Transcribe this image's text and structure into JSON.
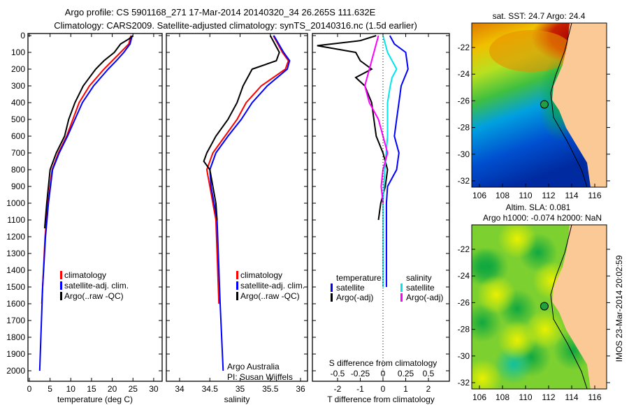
{
  "title_line1": "Argo profile: CS 5901168_271 17-Mar-2014 20140320_34 26.265S 111.632E",
  "title_line2": "Climatology: CARS2009. Satellite-adjusted climatology: synTS_20140316.nc (1.5d earlier)",
  "chart_data": [
    {
      "type": "line",
      "name": "temperature-profile",
      "xlabel": "temperature (deg C)",
      "xlim": [
        -2,
        31
      ],
      "xticks": [
        0,
        5,
        10,
        15,
        20,
        25,
        30
      ],
      "ylim": [
        2050,
        0
      ],
      "yticks": [
        0,
        100,
        200,
        300,
        400,
        500,
        600,
        700,
        800,
        900,
        1000,
        1100,
        1200,
        1300,
        1400,
        1500,
        1600,
        1700,
        1800,
        1900,
        2000
      ],
      "legend": [
        "climatology",
        "satellite-adj. clim.",
        "Argo(..raw -QC)"
      ],
      "legend_position": "bottom-right",
      "series": [
        {
          "name": "climatology",
          "color": "#ff0000",
          "depth": [
            0,
            50,
            100,
            150,
            200,
            300,
            400,
            500,
            600,
            700,
            800,
            1000,
            1200,
            1500,
            1600
          ],
          "values": [
            24.5,
            24,
            22,
            20,
            18,
            14.5,
            12,
            10.5,
            9,
            7,
            5.5,
            4.5,
            3.8,
            3.2,
            3.0
          ]
        },
        {
          "name": "satellite-adj. clim.",
          "color": "#0000ff",
          "depth": [
            0,
            50,
            100,
            150,
            200,
            300,
            400,
            500,
            600,
            700,
            800,
            1000,
            1200,
            1500,
            2000
          ],
          "values": [
            24.8,
            24.3,
            22.8,
            21,
            19,
            15.5,
            12.8,
            11,
            9.2,
            7.2,
            5.6,
            4.6,
            3.9,
            3.2,
            2.5
          ]
        },
        {
          "name": "Argo(..raw -QC)",
          "color": "#000000",
          "depth": [
            0,
            20,
            50,
            100,
            150,
            200,
            300,
            400,
            500,
            600,
            700,
            800,
            1000,
            1150
          ],
          "values": [
            25,
            24,
            22,
            20.5,
            18,
            16,
            13,
            11,
            9.5,
            8.5,
            6.5,
            5,
            4.2,
            3.7
          ]
        }
      ]
    },
    {
      "type": "line",
      "name": "salinity-profile",
      "xlabel": "salinity",
      "xlim": [
        33.78,
        36.15
      ],
      "xticks": [
        34,
        34.5,
        35,
        35.5,
        36
      ],
      "ylim": [
        2050,
        0
      ],
      "legend": [
        "climatology",
        "satellite-adj. clim.",
        "Argo(..raw -QC)"
      ],
      "legend_position": "bottom-right",
      "annotation": [
        "Argo Australia",
        "PI: Susan Wijffels"
      ],
      "series": [
        {
          "name": "climatology",
          "color": "#ff0000",
          "depth": [
            0,
            100,
            150,
            200,
            300,
            400,
            500,
            600,
            700,
            800,
            900,
            1000,
            1100,
            1600
          ],
          "values": [
            35.55,
            35.7,
            35.8,
            35.75,
            35.35,
            35.1,
            34.95,
            34.75,
            34.55,
            34.45,
            34.5,
            34.55,
            34.6,
            34.65
          ]
        },
        {
          "name": "satellite-adj. clim.",
          "color": "#0000ff",
          "depth": [
            0,
            100,
            150,
            200,
            300,
            400,
            500,
            600,
            700,
            800,
            900,
            1000,
            1100,
            1600,
            2000
          ],
          "values": [
            35.56,
            35.72,
            35.82,
            35.78,
            35.45,
            35.2,
            35.02,
            34.8,
            34.6,
            34.5,
            34.52,
            34.57,
            34.62,
            34.67,
            34.72
          ]
        },
        {
          "name": "Argo(..raw -QC)",
          "color": "#000000",
          "depth": [
            0,
            100,
            150,
            200,
            300,
            400,
            500,
            600,
            700,
            750,
            800,
            900,
            1000,
            1100
          ],
          "values": [
            35.5,
            35.65,
            35.6,
            35.2,
            35.05,
            34.95,
            34.8,
            34.6,
            34.45,
            34.4,
            34.5,
            34.55,
            34.6,
            34.62
          ]
        }
      ]
    },
    {
      "type": "line",
      "name": "difference-profile",
      "xlabel": "T difference from climatology",
      "xlabel_top": "S difference from climatology",
      "xlim": [
        -3,
        3
      ],
      "xticks": [
        -2,
        -1,
        0,
        1,
        2
      ],
      "s_xticks": [
        -0.5,
        -0.25,
        0,
        0.25,
        0.5
      ],
      "s_xticklabels": [
        "-0.5",
        "-0.25",
        "0",
        "0.25",
        "0.5"
      ],
      "ylim": [
        2050,
        0
      ],
      "legend_headers": [
        "temperature",
        "salinity"
      ],
      "legend": [
        "satellite",
        "Argo(-adj)",
        "satellite",
        "Argo(-adj)"
      ],
      "series": [
        {
          "name": "T satellite",
          "color": "#0000ff",
          "axis": "T",
          "depth": [
            0,
            50,
            100,
            200,
            300,
            400,
            500,
            600,
            700,
            800,
            900,
            1000,
            1500
          ],
          "values": [
            0.3,
            0.5,
            1.0,
            1.1,
            0.8,
            0.7,
            0.6,
            0.5,
            0.7,
            0.6,
            0.2,
            0.15,
            0.15
          ]
        },
        {
          "name": "T Argo(-adj)",
          "color": "#000000",
          "axis": "T",
          "depth": [
            0,
            30,
            60,
            100,
            150,
            200,
            250,
            300,
            400,
            500,
            600,
            700,
            800,
            900,
            1000,
            1100
          ],
          "values": [
            -0.3,
            -1.0,
            -2.9,
            -1.2,
            -1.0,
            -0.5,
            -1.2,
            -0.8,
            -0.5,
            -0.4,
            -0.3,
            0,
            0.2,
            0.1,
            -0.1,
            -0.2
          ]
        },
        {
          "name": "S satellite",
          "color": "#00e5ee",
          "axis": "S",
          "depth": [
            0,
            100,
            200,
            250,
            300,
            400,
            600,
            800,
            1000,
            1500
          ],
          "values": [
            0,
            0.05,
            0.15,
            0.1,
            0.08,
            0.05,
            0.05,
            0.02,
            0,
            0
          ]
        },
        {
          "name": "S Argo(-adj)",
          "color": "#ff00ff",
          "axis": "S",
          "depth": [
            0,
            100,
            200,
            300,
            400,
            500,
            600,
            700,
            800,
            900,
            1000
          ],
          "values": [
            -0.05,
            -0.1,
            -0.15,
            -0.2,
            -0.15,
            -0.05,
            0,
            0.05,
            0,
            -0.02,
            0
          ]
        }
      ]
    },
    {
      "type": "heatmap",
      "name": "sst-map",
      "title": "sat. SST: 24.7  Argo: 24.4",
      "xticks": [
        106,
        108,
        110,
        112,
        114,
        116
      ],
      "yticks": [
        -22,
        -24,
        -26,
        -28,
        -30,
        -32
      ],
      "yticklabels": [
        "-22",
        "-24",
        "-26",
        "-28",
        "-30",
        "-32"
      ],
      "xlim": [
        105.5,
        117.5
      ],
      "ylim": [
        -32.3,
        -20.1
      ],
      "argo_position": [
        111.632,
        -26.265
      ]
    },
    {
      "type": "heatmap",
      "name": "sla-map",
      "title_line1": "Altim. SLA: 0.081",
      "title_line2": "Argo h1000: -0.074 h2000: NaN",
      "xticks": [
        106,
        108,
        110,
        112,
        114,
        116
      ],
      "yticks": [
        -22,
        -24,
        -26,
        -28,
        -30,
        -32
      ],
      "yticklabels": [
        "-22",
        "-24",
        "-26",
        "-28",
        "-30",
        "-32"
      ],
      "xlim": [
        105.5,
        117.5
      ],
      "ylim": [
        -32.3,
        -20.1
      ],
      "argo_position": [
        111.632,
        -26.265
      ]
    }
  ],
  "watermark": "IMOS 23-Mar-2014 20:02:59"
}
